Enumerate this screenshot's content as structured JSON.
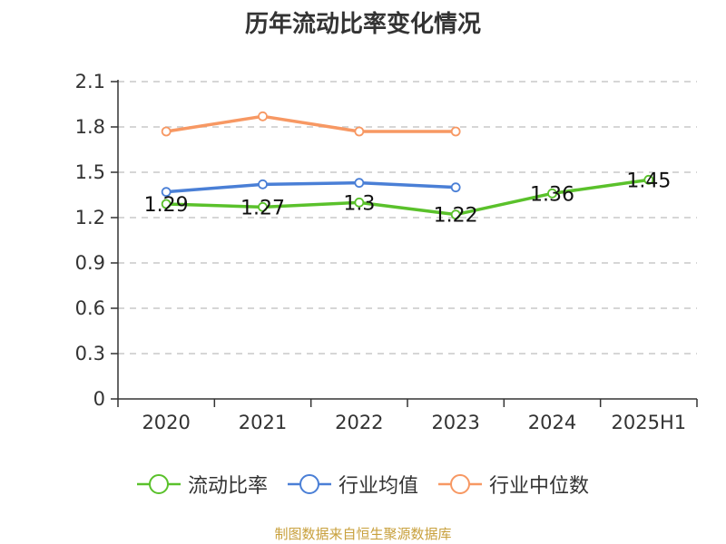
{
  "chart_data": {
    "type": "line",
    "title": "历年流动比率变化情况",
    "categories": [
      "2020",
      "2021",
      "2022",
      "2023",
      "2024",
      "2025H1"
    ],
    "yticks": [
      "0",
      "0.3",
      "0.6",
      "0.9",
      "1.2",
      "1.5",
      "1.8",
      "2.1"
    ],
    "ylim": [
      0,
      2.1
    ],
    "grid": true,
    "legend_position": "bottom",
    "series": [
      {
        "name": "流动比率",
        "color": "#5ac12b",
        "values": [
          1.29,
          1.27,
          1.3,
          1.22,
          1.36,
          1.45
        ],
        "labels": [
          "1.29",
          "1.27",
          "1.3",
          "1.22",
          "1.36",
          "1.45"
        ]
      },
      {
        "name": "行业均值",
        "color": "#4a7fd6",
        "values": [
          1.37,
          1.42,
          1.43,
          1.4,
          null,
          null
        ]
      },
      {
        "name": "行业中位数",
        "color": "#f79863",
        "values": [
          1.77,
          1.87,
          1.77,
          1.77,
          null,
          null
        ]
      }
    ]
  },
  "source": "制图数据来自恒生聚源数据库"
}
